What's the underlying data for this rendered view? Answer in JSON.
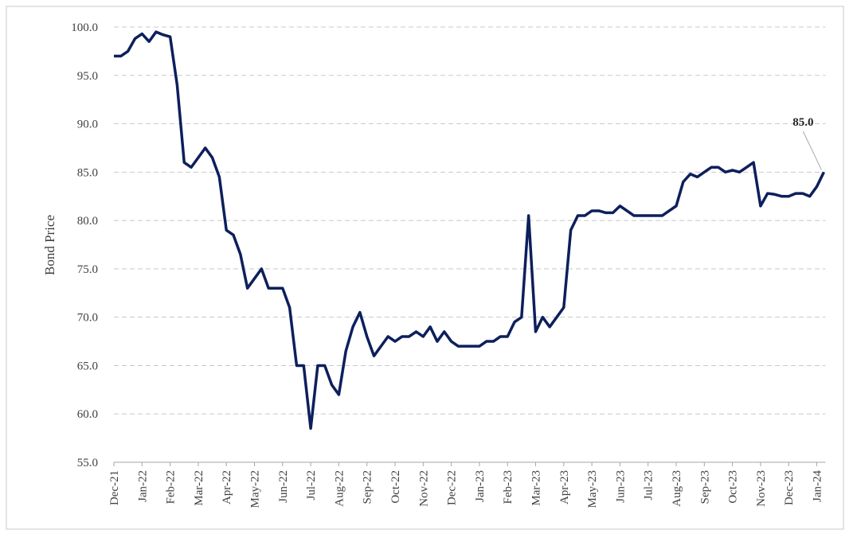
{
  "chart_data": {
    "type": "line",
    "y_label": "Bond Price",
    "annotation": "85.0",
    "categories": [
      "Dec-21",
      null,
      null,
      null,
      "Jan-22",
      null,
      null,
      null,
      "Feb-22",
      null,
      null,
      null,
      "Mar-22",
      null,
      null,
      null,
      "Apr-22",
      null,
      null,
      null,
      "May-22",
      null,
      null,
      null,
      "Jun-22",
      null,
      null,
      null,
      "Jul-22",
      null,
      null,
      null,
      "Aug-22",
      null,
      null,
      null,
      "Sep-22",
      null,
      null,
      null,
      "Oct-22",
      null,
      null,
      null,
      "Nov-22",
      null,
      null,
      null,
      "Dec-22",
      null,
      null,
      null,
      "Jan-23",
      null,
      null,
      null,
      "Feb-23",
      null,
      null,
      null,
      "Mar-23",
      null,
      null,
      null,
      "Apr-23",
      null,
      null,
      null,
      "May-23",
      null,
      null,
      null,
      "Jun-23",
      null,
      null,
      null,
      "Jul-23",
      null,
      null,
      null,
      "Aug-23",
      null,
      null,
      null,
      "Sep-23",
      null,
      null,
      null,
      "Oct-23",
      null,
      null,
      null,
      "Nov-23",
      null,
      null,
      null,
      "Dec-23",
      null,
      null,
      null,
      "Jan-24",
      null
    ],
    "series": [
      {
        "color": "#0d1f5c",
        "values": [
          97,
          97,
          97.5,
          98.8,
          99.3,
          98.5,
          99.5,
          99.2,
          99,
          94,
          86,
          85.5,
          86.5,
          87.5,
          86.5,
          84.5,
          79,
          78.5,
          76.5,
          73,
          74,
          75,
          73,
          73,
          73,
          71,
          65,
          65,
          58.5,
          65,
          65,
          63,
          62,
          66.5,
          69,
          70.5,
          68,
          66,
          67,
          68,
          67.5,
          68,
          68,
          68.5,
          68,
          69,
          67.5,
          68.5,
          67.5,
          67,
          67,
          67,
          67,
          67.5,
          67.5,
          68,
          68,
          69.5,
          70,
          80.5,
          68.5,
          70,
          69,
          70,
          71,
          79,
          80.5,
          80.5,
          81,
          81,
          80.8,
          80.8,
          81.5,
          81,
          80.5,
          80.5,
          80.5,
          80.5,
          80.5,
          81,
          81.5,
          84,
          84.8,
          84.5,
          85,
          85.5,
          85.5,
          85,
          85.2,
          85,
          85.5,
          86,
          81.5,
          82.8,
          82.7,
          82.5,
          82.5,
          82.8,
          82.8,
          82.5,
          83.5,
          85
        ]
      }
    ],
    "ylim": [
      55,
      100
    ],
    "yticks": [
      {
        "value": 55,
        "label": "55.0"
      },
      {
        "value": 60,
        "label": "60.0"
      },
      {
        "value": 65,
        "label": "65.0"
      },
      {
        "value": 70,
        "label": "70.0"
      },
      {
        "value": 75,
        "label": "75.0"
      },
      {
        "value": 80,
        "label": "80.0"
      },
      {
        "value": 85,
        "label": "85.0"
      },
      {
        "value": 90,
        "label": "90.0"
      },
      {
        "value": 95,
        "label": "95.0"
      },
      {
        "value": 100,
        "label": "100.0"
      }
    ],
    "grid": true
  }
}
